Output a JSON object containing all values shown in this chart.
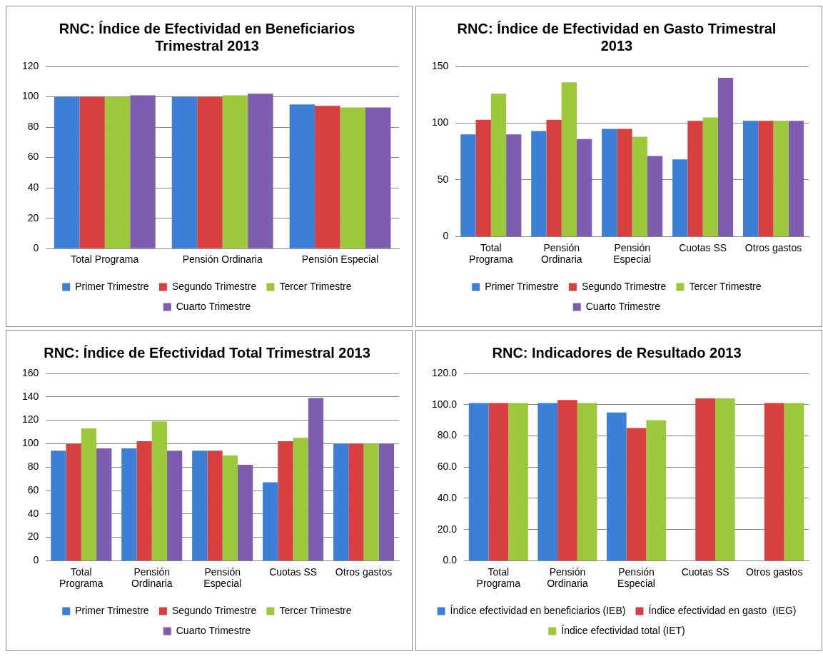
{
  "chart_data": [
    {
      "type": "bar",
      "title": "RNC: Índice de Efectividad en Beneficiarios Trimestral 2013",
      "categories": [
        "Total Programa",
        "Pensión Ordinaria",
        "Pensión Especial"
      ],
      "series": [
        {
          "name": "Primer Trimestre",
          "color": "#3c7fd6",
          "values": [
            100,
            100,
            95
          ]
        },
        {
          "name": "Segundo Trimestre",
          "color": "#d84040",
          "values": [
            100,
            100,
            94
          ]
        },
        {
          "name": "Tercer Trimestre",
          "color": "#9cc93c",
          "values": [
            100,
            101,
            93
          ]
        },
        {
          "name": "Cuarto Trimestre",
          "color": "#7e5db0",
          "values": [
            101,
            102,
            93
          ]
        }
      ],
      "ylim": [
        0,
        120
      ],
      "yticks": [
        0,
        20,
        40,
        60,
        80,
        100,
        120
      ],
      "grid": "y",
      "legend": "bottom"
    },
    {
      "type": "bar",
      "title": "RNC: Índice de Efectividad en Gasto Trimestral 2013",
      "categories": [
        "Total Programa",
        "Pensión Ordinaria",
        "Pensión Especial",
        "Cuotas SS",
        "Otros gastos"
      ],
      "series": [
        {
          "name": "Primer Trimestre",
          "color": "#3c7fd6",
          "values": [
            90,
            93,
            95,
            68,
            102
          ]
        },
        {
          "name": "Segundo Trimestre",
          "color": "#d84040",
          "values": [
            103,
            103,
            95,
            102,
            102
          ]
        },
        {
          "name": "Tercer Trimestre",
          "color": "#9cc93c",
          "values": [
            126,
            136,
            88,
            105,
            102
          ]
        },
        {
          "name": "Cuarto Trimestre",
          "color": "#7e5db0",
          "values": [
            90,
            86,
            71,
            140,
            102
          ]
        }
      ],
      "ylim": [
        0,
        150
      ],
      "yticks": [
        0,
        50,
        100,
        150
      ],
      "grid": "y",
      "legend": "bottom"
    },
    {
      "type": "bar",
      "title": "RNC: Índice de Efectividad Total Trimestral 2013",
      "categories": [
        "Total Programa",
        "Pensión Ordinaria",
        "Pensión Especial",
        "Cuotas SS",
        "Otros gastos"
      ],
      "series": [
        {
          "name": "Primer Trimestre",
          "color": "#3c7fd6",
          "values": [
            94,
            96,
            94,
            67,
            100
          ]
        },
        {
          "name": "Segundo Trimestre",
          "color": "#d84040",
          "values": [
            100,
            102,
            94,
            102,
            100
          ]
        },
        {
          "name": "Tercer Trimestre",
          "color": "#9cc93c",
          "values": [
            113,
            119,
            90,
            105,
            100
          ]
        },
        {
          "name": "Cuarto Trimestre",
          "color": "#7e5db0",
          "values": [
            96,
            94,
            82,
            139,
            100
          ]
        }
      ],
      "ylim": [
        0,
        160
      ],
      "yticks": [
        0,
        20,
        40,
        60,
        80,
        100,
        120,
        140,
        160
      ],
      "grid": "y",
      "legend": "bottom"
    },
    {
      "type": "bar",
      "title": "RNC: Indicadores de Resultado 2013",
      "categories": [
        "Total Programa",
        "Pensión Ordinaria",
        "Pensión Especial",
        "Cuotas SS",
        "Otros gastos"
      ],
      "series": [
        {
          "name": "Índice efectividad en beneficiarios (IEB)",
          "color": "#3c7fd6",
          "values": [
            101,
            101,
            95,
            null,
            null
          ]
        },
        {
          "name": "Índice efectividad en gasto  (IEG)",
          "color": "#d84040",
          "values": [
            101,
            103,
            85,
            104,
            101
          ]
        },
        {
          "name": "Índice efectividad total (IET)",
          "color": "#9cc93c",
          "values": [
            101,
            101,
            90,
            104,
            101
          ]
        }
      ],
      "ylim": [
        0,
        120
      ],
      "yticks": [
        {
          "value": 0,
          "label": "0.0"
        },
        {
          "value": 20,
          "label": "20.0"
        },
        {
          "value": 40,
          "label": "40.0"
        },
        {
          "value": 60,
          "label": "60.0"
        },
        {
          "value": 80,
          "label": "80.0"
        },
        {
          "value": 100,
          "label": "100.0"
        },
        {
          "value": 120,
          "label": "120.0"
        }
      ],
      "grid": "y",
      "legend": "bottom"
    }
  ]
}
